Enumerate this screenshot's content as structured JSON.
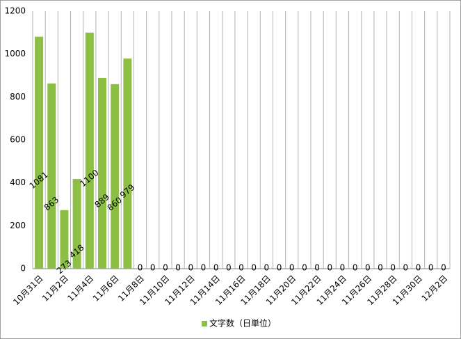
{
  "chart_data": {
    "type": "bar",
    "categories": [
      "10月31日",
      null,
      "11月2日",
      null,
      "11月4日",
      null,
      "11月6日",
      null,
      "11月8日",
      null,
      "11月10日",
      null,
      "11月12日",
      null,
      "11月14日",
      null,
      "11月16日",
      null,
      "11月18日",
      null,
      "11月20日",
      null,
      "11月22日",
      null,
      "11月24日",
      null,
      "11月26日",
      null,
      "11月28日",
      null,
      "11月30日",
      null,
      "12月2日"
    ],
    "series": [
      {
        "name": "文字数（日単位）",
        "color": "#8cbf44",
        "values": [
          1081,
          863,
          273,
          418,
          1100,
          889,
          860,
          979,
          0,
          0,
          0,
          0,
          0,
          0,
          0,
          0,
          0,
          0,
          0,
          0,
          0,
          0,
          0,
          0,
          0,
          0,
          0,
          0,
          0,
          0,
          0,
          0,
          0
        ]
      }
    ],
    "ylim": [
      0,
      1200
    ],
    "yticks": [
      0,
      200,
      400,
      600,
      800,
      1000,
      1200
    ],
    "grid": true,
    "legend": "bottom"
  }
}
